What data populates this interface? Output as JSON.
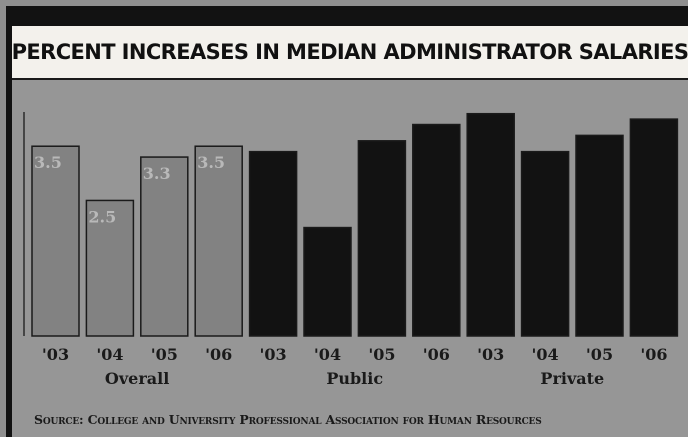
{
  "chart_data": {
    "type": "bar",
    "title": "PERCENT INCREASES IN MEDIAN ADMINISTRATOR SALARIES",
    "groups": [
      {
        "name": "Overall",
        "categories": [
          "'03",
          "'04",
          "'05",
          "'06"
        ],
        "values": [
          3.5,
          2.5,
          3.3,
          3.5
        ],
        "labels": [
          "3.5",
          "2.5",
          "3.3",
          "3.5"
        ],
        "color": "#828282"
      },
      {
        "name": "Public",
        "categories": [
          "'03",
          "'04",
          "'05",
          "'06"
        ],
        "values": [
          3.4,
          2.0,
          3.6,
          3.9
        ],
        "labels": [],
        "color": "#121212"
      },
      {
        "name": "Private",
        "categories": [
          "'03",
          "'04",
          "'05",
          "'06"
        ],
        "values": [
          4.1,
          3.4,
          3.7,
          4.0
        ],
        "labels": [],
        "color": "#121212"
      }
    ],
    "ylim": [
      0,
      4.5
    ],
    "grid": false,
    "source": "Source: College and University Professional Association for Human Resources"
  }
}
